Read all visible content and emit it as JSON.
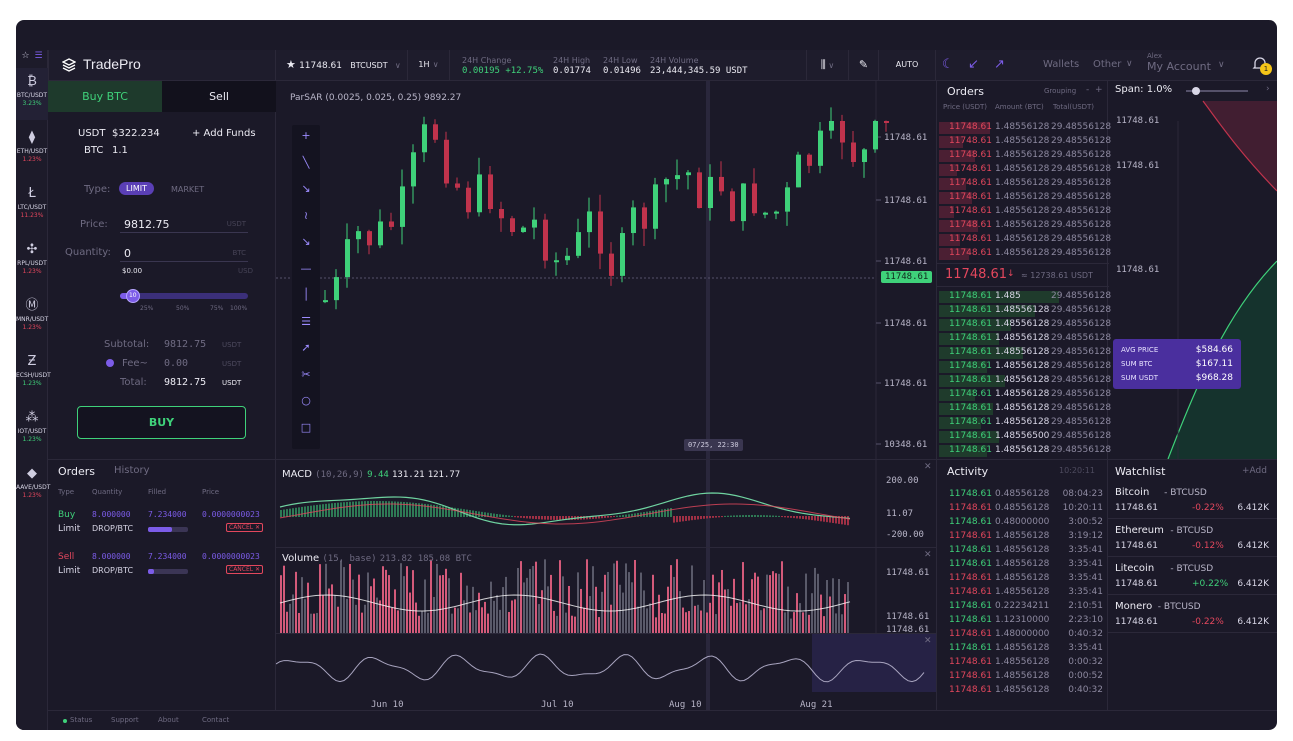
{
  "app": {
    "name": "TradePro"
  },
  "header": {
    "price": "11748.61",
    "pair": "BTCUSDT",
    "interval": "1H",
    "stats": [
      {
        "label": "24H Change",
        "value": "0.00195 +12.75%"
      },
      {
        "label": "24H High",
        "value": "0.01774"
      },
      {
        "label": "24H Low",
        "value": "0.01496"
      },
      {
        "label": "24H Volume",
        "value": "23,444,345.59 USDT"
      }
    ],
    "auto_label": "AUTO",
    "wallets": "Wallets",
    "other": "Other",
    "user_name": "Alex",
    "account": "My Account",
    "notification_count": "1"
  },
  "rail": [
    {
      "icon": "bitcoin-icon",
      "glyph": "₿",
      "pair": "BTC/USDT",
      "change": "3.23%",
      "status": "up"
    },
    {
      "icon": "ethereum-icon",
      "glyph": "⧫",
      "pair": "ETH/USDT",
      "change": "1.23%",
      "status": "down"
    },
    {
      "icon": "litecoin-icon",
      "glyph": "Ł",
      "pair": "LTC/USDT",
      "change": "11.23%",
      "status": "down"
    },
    {
      "icon": "ripple-icon",
      "glyph": "✣",
      "pair": "RPL/USDT",
      "change": "1.23%",
      "status": "down"
    },
    {
      "icon": "monero-icon",
      "glyph": "Ⓜ",
      "pair": "MNR/USDT",
      "change": "1.23%",
      "status": "down"
    },
    {
      "icon": "zcash-icon",
      "glyph": "Ƶ",
      "pair": "ECSH/USDT",
      "change": "1.23%",
      "status": "up"
    },
    {
      "icon": "iota-icon",
      "glyph": "⁂",
      "pair": "IOT/USDT",
      "change": "1.23%",
      "status": "up"
    },
    {
      "icon": "aave-icon",
      "glyph": "◆",
      "pair": "AAVE/USDT",
      "change": "1.23%",
      "status": "down"
    }
  ],
  "order_form": {
    "buy_tab": "Buy BTC",
    "sell_tab": "Sell",
    "usdt_label": "USDT",
    "usdt_balance": "$322.234",
    "btc_label": "BTC",
    "btc_balance": "1.1",
    "add_funds": "+ Add Funds",
    "type_label": "Type:",
    "type_limit": "LIMIT",
    "type_market": "MARKET",
    "price_label": "Price:",
    "price_value": "9812.75",
    "price_unit": "USDT",
    "quantity_label": "Quantity:",
    "quantity_value": "0",
    "quantity_unit": "BTC",
    "quantity_sub": "$0.00",
    "quantity_sub_unit": "USD",
    "slider_percent": 0.1,
    "slider_handle": "10",
    "slider_ticks": [
      "25%",
      "50%",
      "75%",
      "100%"
    ],
    "subtotal_label": "Subtotal:",
    "subtotal_value": "9812.75",
    "subtotal_unit": "USDT",
    "fee_label": "Fee~",
    "fee_value": "0.00",
    "fee_unit": "USDT",
    "total_label": "Total:",
    "total_value": "9812.75",
    "total_unit": "USDT",
    "buy_button": "BUY"
  },
  "orders_panel": {
    "tab_orders": "Orders",
    "tab_history": "History",
    "columns": [
      "Type",
      "Quantity",
      "Filled",
      "Price"
    ],
    "rows": [
      {
        "side": "Buy",
        "kind": "Limit",
        "quantity": "8.000000",
        "pair": "DROP/BTC",
        "filled": "7.234000",
        "fill": 0.6,
        "price": "0.0000000023",
        "cancel": "CANCEL ✕"
      },
      {
        "side": "Sell",
        "kind": "Limit",
        "quantity": "8.000000",
        "pair": "DROP/BTC",
        "filled": "7.234000",
        "fill": 0.15,
        "price": "0.0000000023",
        "cancel": "CANCEL ✕"
      }
    ]
  },
  "chart": {
    "indicator": "ParSAR (0.0025, 0.025, 0.25) 9892.27",
    "price_ticks": [
      "11748.61",
      "11748.61",
      "11748.61",
      "11748.61",
      "11748.61",
      "10348.61"
    ],
    "current_price": "11748.61",
    "crosshair_label": "07/25, 22:30",
    "macd_title": "MACD",
    "macd_params": "(10,26,9)",
    "macd_values": [
      "9.44",
      "131.21",
      "121.77"
    ],
    "macd_ticks": [
      "200.00",
      "11.07",
      "-200.00"
    ],
    "volume_title": "Volume",
    "volume_params": "(15, base)",
    "volume_values": "213.82 185.08 BTC",
    "volume_ticks": [
      "11748.61",
      "11748.61",
      "11748.61"
    ],
    "x_ticks": [
      "Jun 10",
      "Jul 10",
      "Aug 10",
      "Aug 21"
    ]
  },
  "orderbook": {
    "title": "Orders",
    "grouping": "Grouping",
    "columns": [
      "Price (USDT)",
      "Amount (BTC)",
      "Total(USDT)"
    ],
    "asks_price": "11748.61",
    "asks_amount": "1.48556128",
    "asks_total": "29.48556128",
    "mid_price": "11748.61",
    "mid_arrow": "↓",
    "mid_equiv": "≈ 12738.61 USDT",
    "bids": [
      {
        "price": "11748.61",
        "amount": "1.485",
        "total": "29.48556128"
      },
      {
        "price": "11748.61",
        "amount": "1.48556128",
        "total": "29.48556128"
      },
      {
        "price": "11748.61",
        "amount": "1.48556128",
        "total": "29.48556128"
      },
      {
        "price": "11748.61",
        "amount": "1.48556128",
        "total": "29.48556128"
      },
      {
        "price": "11748.61",
        "amount": "1.48556128",
        "total": "29.48556128"
      },
      {
        "price": "11748.61",
        "amount": "1.48556128",
        "total": "29.48556128"
      },
      {
        "price": "11748.61",
        "amount": "1.48556128",
        "total": "29.48556128"
      },
      {
        "price": "11748.61",
        "amount": "1.48556128",
        "total": "29.48556128"
      },
      {
        "price": "11748.61",
        "amount": "1.48556128",
        "total": "29.48556128"
      },
      {
        "price": "11748.61",
        "amount": "1.48556128",
        "total": "29.48556128"
      },
      {
        "price": "11748.61",
        "amount": "1.48556500",
        "total": "29.48556128"
      },
      {
        "price": "11748.61",
        "amount": "1.48556128",
        "total": "29.48556128"
      }
    ]
  },
  "depth": {
    "span": "Span: 1.0%",
    "ticks": [
      "11748.61",
      "11748.61",
      "11748.61"
    ],
    "tooltip": [
      {
        "label": "AVG PRICE",
        "value": "$584.66"
      },
      {
        "label": "SUM BTC",
        "value": "$167.11"
      },
      {
        "label": "SUM USDT",
        "value": "$968.28"
      }
    ]
  },
  "activity": {
    "title": "Activity",
    "time": "10:20:11",
    "rows": [
      {
        "price": "11748.61",
        "amount": "0.48556128",
        "time": "08:04:23",
        "side": "buy"
      },
      {
        "price": "11748.61",
        "amount": "0.48556128",
        "time": "10:20:11",
        "side": "sell"
      },
      {
        "price": "11748.61",
        "amount": "0.48000000",
        "time": "3:00:52",
        "side": "buy"
      },
      {
        "price": "11748.61",
        "amount": "1.48556128",
        "time": "3:19:12",
        "side": "sell"
      },
      {
        "price": "11748.61",
        "amount": "1.48556128",
        "time": "3:35:41",
        "side": "buy"
      },
      {
        "price": "11748.61",
        "amount": "1.48556128",
        "time": "3:35:41",
        "side": "buy"
      },
      {
        "price": "11748.61",
        "amount": "1.48556128",
        "time": "3:35:41",
        "side": "sell"
      },
      {
        "price": "11748.61",
        "amount": "1.48556128",
        "time": "3:35:41",
        "side": "sell"
      },
      {
        "price": "11748.61",
        "amount": "0.22234211",
        "time": "2:10:51",
        "side": "buy"
      },
      {
        "price": "11748.61",
        "amount": "1.12310000",
        "time": "2:23:10",
        "side": "buy"
      },
      {
        "price": "11748.61",
        "amount": "1.48000000",
        "time": "0:40:32",
        "side": "sell"
      },
      {
        "price": "11748.61",
        "amount": "1.48556128",
        "time": "3:35:41",
        "side": "buy"
      },
      {
        "price": "11748.61",
        "amount": "1.48556128",
        "time": "0:00:32",
        "side": "sell"
      },
      {
        "price": "11748.61",
        "amount": "1.48556128",
        "time": "0:00:52",
        "side": "sell"
      },
      {
        "price": "11748.61",
        "amount": "1.48556128",
        "time": "0:40:32",
        "side": "sell"
      }
    ]
  },
  "watchlist": {
    "title": "Watchlist",
    "add": "+Add",
    "items": [
      {
        "name": "Bitcoin",
        "pair": "- BTCUSD",
        "price": "11748.61",
        "change": "-0.22%",
        "volume": "6.412K",
        "dir": "down"
      },
      {
        "name": "Ethereum",
        "pair": "- BTCUSD",
        "price": "11748.61",
        "change": "-0.12%",
        "volume": "6.412K",
        "dir": "down"
      },
      {
        "name": "Litecoin",
        "pair": "- BTCUSD",
        "price": "11748.61",
        "change": "+0.22%",
        "volume": "6.412K",
        "dir": "up"
      },
      {
        "name": "Monero",
        "pair": "- BTCUSD",
        "price": "11748.61",
        "change": "-0.22%",
        "volume": "6.412K",
        "dir": "down"
      }
    ]
  },
  "footer": {
    "status": "Status",
    "support": "Support",
    "about": "About",
    "contact": "Contact"
  },
  "colors": {
    "accent": "#5a3fb6",
    "buy": "#3fd17a",
    "sell": "#e3475d",
    "background": "#1b1928"
  }
}
